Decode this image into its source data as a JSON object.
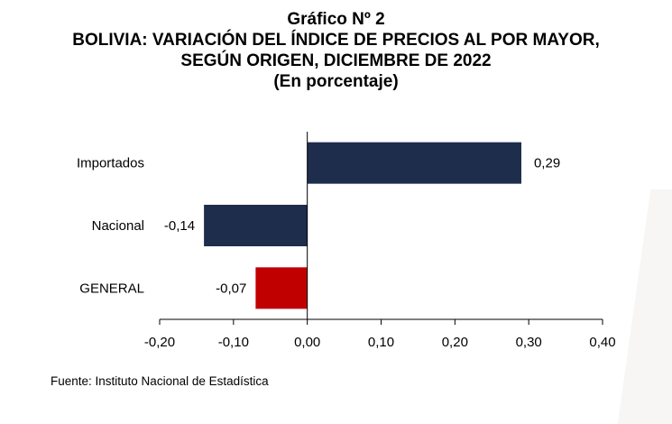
{
  "chart_data": {
    "type": "bar",
    "orientation": "horizontal",
    "title": "Gráfico Nº 2",
    "subtitle_lines": [
      "BOLIVIA: VARIACIÓN DEL ÍNDICE DE PRECIOS AL POR MAYOR,",
      "SEGÚN ORIGEN, DICIEMBRE DE 2022"
    ],
    "unit_note": "(En porcentaje)",
    "categories": [
      "Importados",
      "Nacional",
      "GENERAL"
    ],
    "values": [
      0.29,
      -0.14,
      -0.07
    ],
    "value_labels": [
      "0,29",
      "-0,14",
      "-0,07"
    ],
    "colors": [
      "#1f2d4d",
      "#1f2d4d",
      "#c00000"
    ],
    "xlim": [
      -0.2,
      0.4
    ],
    "xticks": [
      -0.2,
      -0.1,
      0,
      0.1,
      0.2,
      0.3,
      0.4
    ],
    "xtick_labels": [
      "-0,20",
      "-0,10",
      "0,00",
      "0,10",
      "0,20",
      "0,30",
      "0,40"
    ],
    "grid": false,
    "legend": "none"
  },
  "source": "Fuente: Instituto Nacional de Estadística"
}
